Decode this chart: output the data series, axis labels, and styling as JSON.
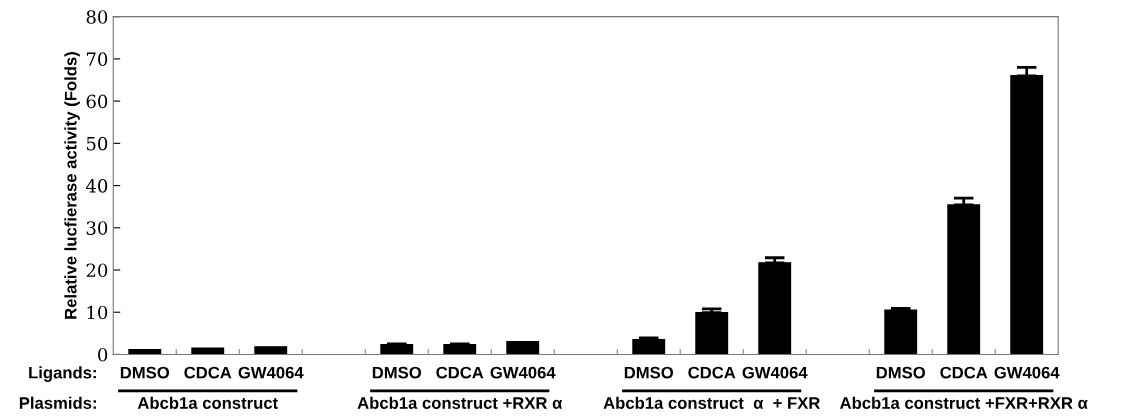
{
  "chart_data": {
    "type": "bar",
    "ylabel": "Relative lucfierase activity (Folds)",
    "categories": [
      "DMSO",
      "CDCA",
      "GW4064",
      null,
      "DMSO",
      "CDCA",
      "GW4064",
      null,
      "DMSO",
      "CDCA",
      "GW4064",
      null,
      "DMSO",
      "CDCA",
      "GW4064"
    ],
    "values": [
      1.1,
      1.5,
      1.8,
      null,
      2.3,
      2.3,
      3.0,
      null,
      3.5,
      9.9,
      21.7,
      null,
      10.5,
      35.4,
      66.0
    ],
    "errors": [
      null,
      null,
      null,
      null,
      0.2,
      0.2,
      null,
      null,
      0.4,
      0.9,
      1.2,
      null,
      0.4,
      1.6,
      2.0
    ],
    "color": "#000000",
    "ylim": [
      0,
      80
    ],
    "yticks": [
      0,
      10,
      20,
      30,
      40,
      50,
      60,
      70,
      80
    ],
    "grid": false,
    "annotations": [
      "Ligands:",
      "Plasmids:",
      "Abcb1a construct",
      "Abcb1a construct +RXR α",
      "Abcb1a construct  α  + FXR",
      "Abcb1a construct +FXR+RXR α"
    ]
  }
}
